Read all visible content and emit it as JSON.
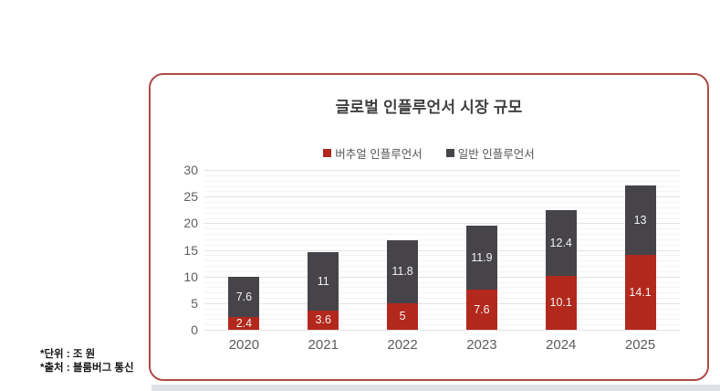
{
  "chart_data": {
    "type": "bar",
    "stacked": true,
    "title": "글로벌 인플루언서 시장 규모",
    "categories": [
      "2020",
      "2021",
      "2022",
      "2023",
      "2024",
      "2025"
    ],
    "series": [
      {
        "name": "버추얼 인플루언서",
        "color": "#b3281d",
        "values": [
          2.4,
          3.6,
          5,
          7.6,
          10.1,
          14.1
        ]
      },
      {
        "name": "일반 인플루언서",
        "color": "#464449",
        "values": [
          7.6,
          11,
          11.8,
          11.9,
          12.4,
          13
        ]
      }
    ],
    "xlabel": "",
    "ylabel": "",
    "ylim": [
      0,
      30
    ],
    "y_major_step": 5,
    "y_minor_step": 1,
    "grid": true,
    "legend_position": "top",
    "value_labels": true
  },
  "footnotes": [
    "*단위 : 조 원",
    "*출처 : 블룸버그 통신"
  ],
  "colors": {
    "card_border": "#ad4a45",
    "grid_major": "#e2e2e2",
    "grid_minor": "#f3f3f3",
    "axis_text": "#5c5c5c",
    "title_text": "#3f3f3f",
    "bottom_strip": "#dfe1e8"
  }
}
